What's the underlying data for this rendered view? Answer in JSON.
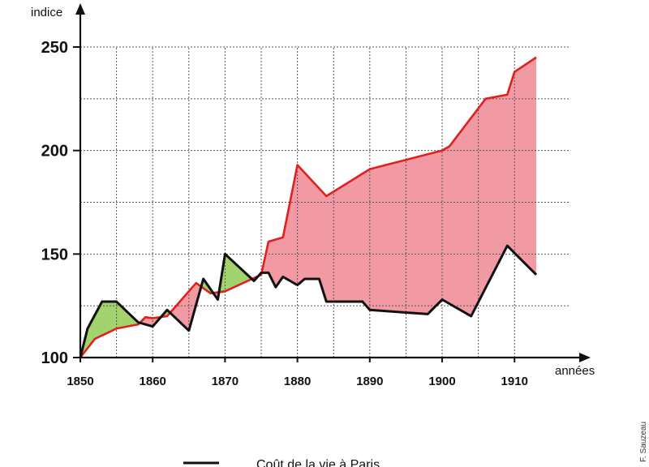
{
  "chart_data": {
    "type": "line",
    "ylabel": "indice",
    "xlabel": "années",
    "xlim": [
      1850,
      1913
    ],
    "ylim": [
      100,
      250
    ],
    "x_ticks": [
      1850,
      1860,
      1870,
      1880,
      1890,
      1900,
      1910
    ],
    "y_ticks": [
      100,
      150,
      200,
      250
    ],
    "grid": true,
    "colors": {
      "red_series": "#e0201c",
      "black_series": "#111111",
      "fill_red_above_black": "#f29aa3",
      "fill_black_above_red": "#a3d36e"
    },
    "series": [
      {
        "color": "#e0201c",
        "x": [
          1850,
          1852,
          1855,
          1858,
          1859,
          1860,
          1862,
          1866,
          1868,
          1870,
          1875,
          1876,
          1878,
          1880,
          1884,
          1890,
          1900,
          1901,
          1906,
          1909,
          1910,
          1913
        ],
        "y": [
          100,
          109,
          114,
          116,
          119.5,
          119,
          120,
          136,
          131,
          132,
          140,
          156,
          158,
          193,
          178,
          191,
          200,
          202,
          225,
          227,
          238,
          245
        ]
      },
      {
        "name": "Coût de la vie à Paris",
        "color": "#111111",
        "x": [
          1850,
          1851,
          1853,
          1855,
          1858,
          1860,
          1862,
          1865,
          1867,
          1869,
          1870,
          1874,
          1875,
          1876,
          1877,
          1878,
          1880,
          1881,
          1883,
          1884,
          1889,
          1890,
          1898,
          1900,
          1904,
          1909,
          1913
        ],
        "y": [
          100,
          114,
          127,
          127,
          117,
          115,
          123,
          113,
          138,
          128,
          150,
          137,
          141,
          141,
          134,
          139,
          135,
          138,
          138,
          127,
          127,
          123,
          121,
          128,
          120,
          154,
          140
        ]
      }
    ],
    "legend": {
      "entries": [
        "Coût de la vie à Paris"
      ]
    },
    "credit": "F. Sauzeau"
  }
}
